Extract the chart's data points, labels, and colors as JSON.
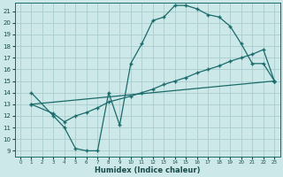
{
  "xlabel": "Humidex (Indice chaleur)",
  "bg_color": "#cde8e8",
  "grid_color": "#aacccc",
  "line_color": "#1a6b6b",
  "xlim": [
    -0.5,
    23.5
  ],
  "ylim": [
    8.5,
    21.7
  ],
  "yticks": [
    9,
    10,
    11,
    12,
    13,
    14,
    15,
    16,
    17,
    18,
    19,
    20,
    21
  ],
  "xticks": [
    0,
    1,
    2,
    3,
    4,
    5,
    6,
    7,
    8,
    9,
    10,
    11,
    12,
    13,
    14,
    15,
    16,
    17,
    18,
    19,
    20,
    21,
    22,
    23
  ],
  "line1_x": [
    1,
    3,
    4,
    5,
    6,
    7,
    8,
    9,
    10,
    11,
    12,
    13,
    14,
    15,
    16,
    17,
    18,
    19,
    20,
    21,
    22,
    23
  ],
  "line1_y": [
    14.0,
    12.0,
    11.0,
    9.2,
    9.0,
    9.0,
    14.0,
    11.2,
    16.5,
    18.2,
    20.2,
    20.5,
    21.5,
    21.5,
    21.2,
    20.7,
    20.5,
    19.7,
    18.2,
    16.5,
    16.5,
    15.0
  ],
  "line2_x": [
    1,
    3,
    4,
    5,
    6,
    7,
    8,
    10,
    11,
    12,
    13,
    14,
    15,
    16,
    17,
    18,
    19,
    20,
    21,
    22,
    23
  ],
  "line2_y": [
    13.0,
    12.2,
    11.5,
    12.0,
    12.3,
    12.7,
    13.2,
    13.7,
    14.0,
    14.3,
    14.7,
    15.0,
    15.3,
    15.7,
    16.0,
    16.3,
    16.7,
    17.0,
    17.3,
    17.7,
    15.0
  ],
  "line3_x": [
    1,
    23
  ],
  "line3_y": [
    13.0,
    15.0
  ]
}
